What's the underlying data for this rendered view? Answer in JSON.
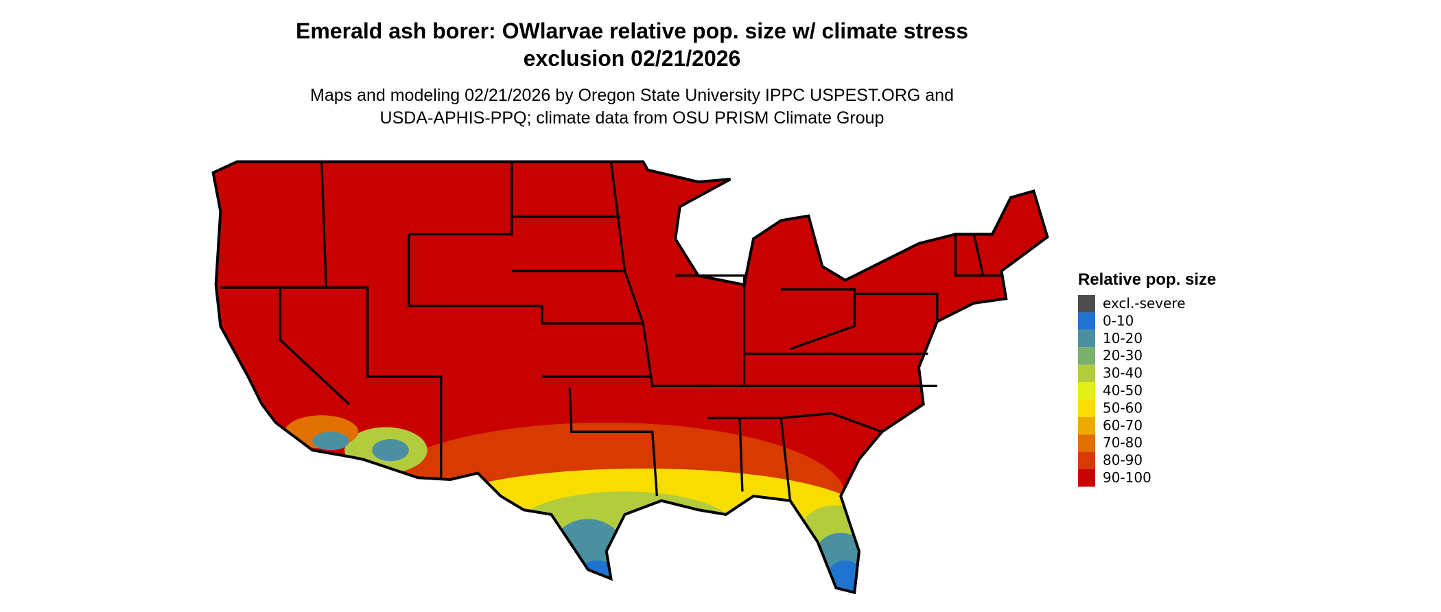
{
  "header": {
    "title_line1": "Emerald ash borer: OWlarvae relative pop. size w/ climate stress",
    "title_line2": "exclusion 02/21/2026",
    "subtitle_line1": "Maps and modeling 02/21/2026 by Oregon State University IPPC USPEST.ORG and",
    "subtitle_line2": "USDA-APHIS-PPQ; climate data from OSU PRISM Climate Group"
  },
  "legend": {
    "title": "Relative pop. size",
    "items": [
      {
        "label": "excl.-severe",
        "color": "#4d4d4d"
      },
      {
        "label": "0-10",
        "color": "#1f73d1"
      },
      {
        "label": "10-20",
        "color": "#4a90a0"
      },
      {
        "label": "20-30",
        "color": "#7aaf6e"
      },
      {
        "label": "30-40",
        "color": "#b2cc3e"
      },
      {
        "label": "40-50",
        "color": "#e2ee14"
      },
      {
        "label": "50-60",
        "color": "#f7de00"
      },
      {
        "label": "60-70",
        "color": "#eeaa00"
      },
      {
        "label": "70-80",
        "color": "#e07000"
      },
      {
        "label": "80-90",
        "color": "#d83a00"
      },
      {
        "label": "90-100",
        "color": "#c80000"
      }
    ]
  }
}
